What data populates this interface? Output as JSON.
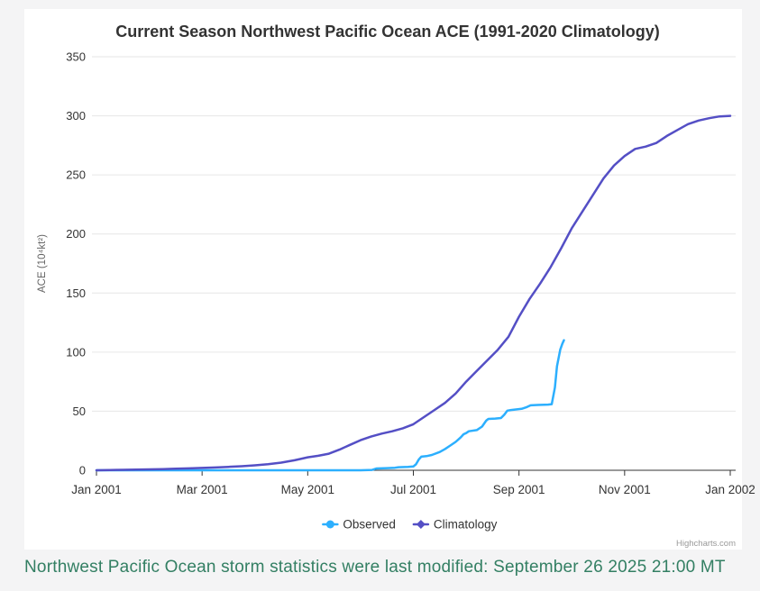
{
  "chart": {
    "title": "Current Season Northwest Pacific Ocean ACE (1991-2020 Climatology)",
    "credits": "Highcharts.com",
    "colors": {
      "title": "#333333",
      "axis_line": "#333333",
      "gridline": "#e6e6e6",
      "tick_label": "#333333",
      "axis_title": "#666666",
      "legend_text": "#333333",
      "credits_text": "#999999",
      "card_background": "#ffffff",
      "page_background": "#f4f4f5"
    }
  },
  "chart_data": {
    "type": "line",
    "title": "Current Season Northwest Pacific Ocean ACE (1991-2020 Climatology)",
    "xlabel": "",
    "ylabel": "ACE (10⁴kt²)",
    "x_unit_note": "months elapsed since Jan 1 2001 (0 = Jan 2001, 12 = Jan 2002)",
    "x_ticks": [
      {
        "month": 0,
        "label": "Jan 2001"
      },
      {
        "month": 2,
        "label": "Mar 2001"
      },
      {
        "month": 4,
        "label": "May 2001"
      },
      {
        "month": 6,
        "label": "Jul 2001"
      },
      {
        "month": 8,
        "label": "Sep 2001"
      },
      {
        "month": 10,
        "label": "Nov 2001"
      },
      {
        "month": 12,
        "label": "Jan 2002"
      }
    ],
    "y_ticks": [
      0,
      50,
      100,
      150,
      200,
      250,
      300,
      350
    ],
    "ylim": [
      0,
      350
    ],
    "xlim_months": [
      0,
      12
    ],
    "grid": true,
    "legend_position": "bottom-center",
    "series": [
      {
        "name": "Observed",
        "color": "#2caffe",
        "marker": "circle",
        "points": [
          [
            0,
            0
          ],
          [
            1,
            0
          ],
          [
            2,
            0
          ],
          [
            3,
            0
          ],
          [
            4,
            0
          ],
          [
            5,
            0
          ],
          [
            5.22,
            0.3
          ],
          [
            5.3,
            1.5
          ],
          [
            5.5,
            1.8
          ],
          [
            5.65,
            2.1
          ],
          [
            5.72,
            2.6
          ],
          [
            5.9,
            2.8
          ],
          [
            6.0,
            3.2
          ],
          [
            6.05,
            5
          ],
          [
            6.1,
            9
          ],
          [
            6.15,
            11.5
          ],
          [
            6.25,
            12
          ],
          [
            6.35,
            13
          ],
          [
            6.5,
            15.5
          ],
          [
            6.6,
            18
          ],
          [
            6.7,
            21
          ],
          [
            6.8,
            24
          ],
          [
            6.9,
            28
          ],
          [
            6.95,
            30.5
          ],
          [
            7.0,
            31.5
          ],
          [
            7.05,
            33
          ],
          [
            7.2,
            34
          ],
          [
            7.3,
            37
          ],
          [
            7.38,
            42
          ],
          [
            7.42,
            43.5
          ],
          [
            7.55,
            43.8
          ],
          [
            7.66,
            44.2
          ],
          [
            7.72,
            47
          ],
          [
            7.78,
            50.5
          ],
          [
            7.85,
            51
          ],
          [
            8.05,
            52
          ],
          [
            8.15,
            53.5
          ],
          [
            8.22,
            55
          ],
          [
            8.35,
            55.3
          ],
          [
            8.55,
            55.6
          ],
          [
            8.62,
            56
          ],
          [
            8.68,
            70
          ],
          [
            8.72,
            88
          ],
          [
            8.78,
            102
          ],
          [
            8.82,
            107
          ],
          [
            8.85,
            110
          ]
        ]
      },
      {
        "name": "Climatology",
        "color": "#544fc5",
        "marker": "diamond",
        "points": [
          [
            0,
            0
          ],
          [
            0.25,
            0.2
          ],
          [
            0.5,
            0.4
          ],
          [
            0.75,
            0.6
          ],
          [
            1,
            0.8
          ],
          [
            1.25,
            1.0
          ],
          [
            1.5,
            1.3
          ],
          [
            1.75,
            1.6
          ],
          [
            2,
            2
          ],
          [
            2.25,
            2.4
          ],
          [
            2.5,
            2.9
          ],
          [
            2.75,
            3.4
          ],
          [
            3,
            4.2
          ],
          [
            3.25,
            5.2
          ],
          [
            3.5,
            6.5
          ],
          [
            3.75,
            8.5
          ],
          [
            4,
            11
          ],
          [
            4.2,
            12.3
          ],
          [
            4.4,
            14
          ],
          [
            4.6,
            17.5
          ],
          [
            4.8,
            21.5
          ],
          [
            5,
            25.5
          ],
          [
            5.2,
            28.5
          ],
          [
            5.4,
            31
          ],
          [
            5.6,
            33
          ],
          [
            5.8,
            35.5
          ],
          [
            6,
            39
          ],
          [
            6.2,
            45
          ],
          [
            6.4,
            51
          ],
          [
            6.6,
            57
          ],
          [
            6.8,
            65
          ],
          [
            7,
            75
          ],
          [
            7.2,
            84
          ],
          [
            7.4,
            93
          ],
          [
            7.6,
            102
          ],
          [
            7.8,
            113
          ],
          [
            8,
            130
          ],
          [
            8.2,
            145
          ],
          [
            8.4,
            158
          ],
          [
            8.6,
            172
          ],
          [
            8.8,
            188
          ],
          [
            9,
            205
          ],
          [
            9.2,
            219
          ],
          [
            9.4,
            233
          ],
          [
            9.6,
            247
          ],
          [
            9.8,
            258
          ],
          [
            10,
            266
          ],
          [
            10.2,
            272
          ],
          [
            10.4,
            274
          ],
          [
            10.6,
            277
          ],
          [
            10.8,
            283
          ],
          [
            11,
            288
          ],
          [
            11.2,
            293
          ],
          [
            11.4,
            296
          ],
          [
            11.6,
            298
          ],
          [
            11.8,
            299.5
          ],
          [
            12,
            300
          ]
        ]
      }
    ]
  },
  "footer": {
    "text": "Northwest Pacific Ocean storm statistics were last modified: September 26 2025 21:00 MT",
    "color": "#337f63"
  }
}
